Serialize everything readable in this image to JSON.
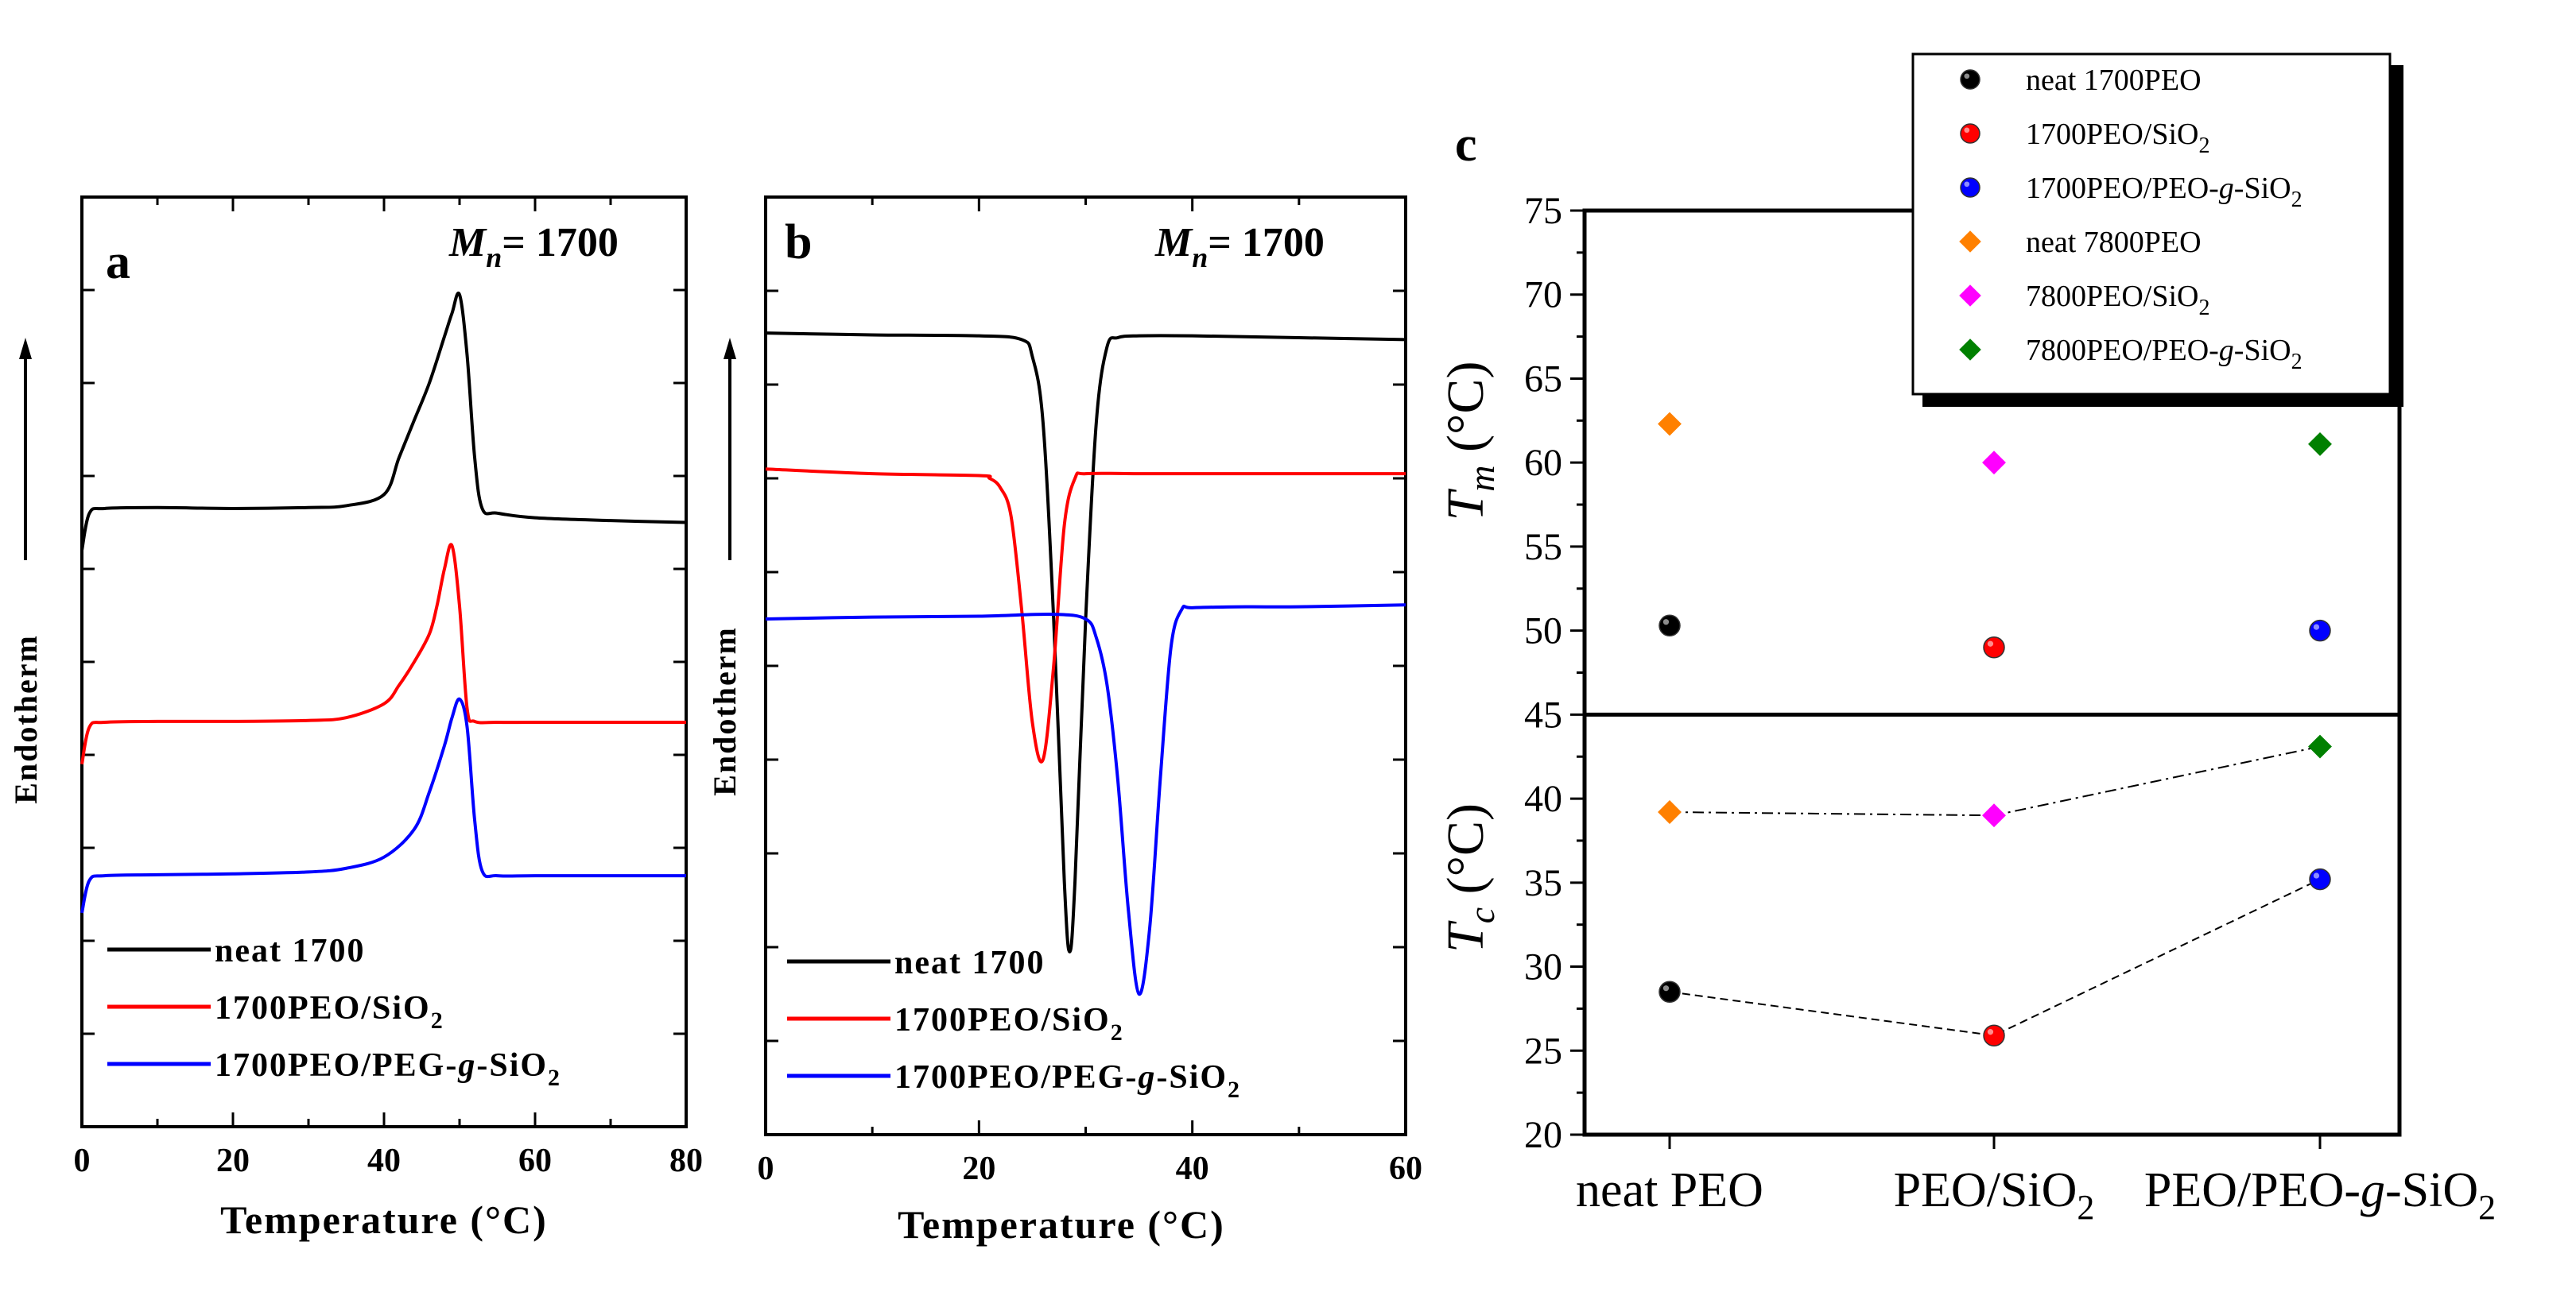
{
  "chart_data": [
    {
      "panel": "a",
      "type": "line",
      "annotation": "= 1700",
      "annotation_prefix": "M",
      "annotation_sub": "n",
      "xlabel": "Temperature (°C)",
      "ylabel": "Endotherm",
      "xlim": [
        0,
        80
      ],
      "xticks": [
        "0",
        "20",
        "40",
        "60",
        "80"
      ],
      "legend_placement": "bottom",
      "series": [
        {
          "name": "neat 1700",
          "name_sub": "",
          "color": "#000000",
          "x": [
            0,
            1,
            3,
            10,
            20,
            30,
            35,
            40,
            42,
            44,
            46,
            48,
            49,
            50,
            51,
            52,
            53,
            55,
            60,
            70,
            80
          ],
          "y": [
            0.62,
            0.66,
            0.665,
            0.666,
            0.665,
            0.666,
            0.668,
            0.68,
            0.72,
            0.76,
            0.8,
            0.85,
            0.875,
            0.895,
            0.83,
            0.72,
            0.665,
            0.66,
            0.655,
            0.652,
            0.65
          ]
        },
        {
          "name": "1700PEO/SiO",
          "name_sub": "2",
          "color": "#ff0000",
          "x": [
            0,
            1,
            3,
            10,
            20,
            30,
            35,
            40,
            42,
            44,
            46,
            47,
            48,
            49,
            50,
            51,
            52,
            55,
            60,
            70,
            80
          ],
          "y": [
            0.39,
            0.43,
            0.435,
            0.436,
            0.436,
            0.437,
            0.44,
            0.455,
            0.475,
            0.5,
            0.53,
            0.56,
            0.6,
            0.625,
            0.56,
            0.45,
            0.436,
            0.435,
            0.435,
            0.435,
            0.435
          ]
        },
        {
          "name": "1700PEO/PEG-g-SiO",
          "name_sub": "2",
          "color": "#0000ff",
          "x": [
            0,
            1,
            3,
            10,
            20,
            30,
            35,
            40,
            44,
            46,
            48,
            49,
            50,
            51,
            52,
            53,
            55,
            60,
            70,
            80
          ],
          "y": [
            0.23,
            0.265,
            0.27,
            0.271,
            0.272,
            0.274,
            0.278,
            0.29,
            0.32,
            0.36,
            0.41,
            0.44,
            0.46,
            0.43,
            0.33,
            0.275,
            0.27,
            0.27,
            0.27,
            0.27
          ]
        }
      ],
      "grid": false
    },
    {
      "panel": "b",
      "type": "line",
      "annotation": "= 1700",
      "annotation_prefix": "M",
      "annotation_sub": "n",
      "xlabel": "Temperature (°C)",
      "ylabel": "Endotherm",
      "xlim": [
        0,
        60
      ],
      "xticks": [
        "0",
        "20",
        "40",
        "60"
      ],
      "legend_placement": "bottom",
      "series": [
        {
          "name": "neat 1700",
          "name_sub": "",
          "color": "#000000",
          "x": [
            0,
            10,
            20,
            24,
            25,
            26,
            27,
            28,
            28.5,
            29,
            30,
            31,
            32,
            33,
            35,
            40,
            50,
            60
          ],
          "y": [
            0.855,
            0.853,
            0.852,
            0.848,
            0.83,
            0.76,
            0.55,
            0.27,
            0.195,
            0.27,
            0.55,
            0.76,
            0.84,
            0.85,
            0.852,
            0.852,
            0.85,
            0.848
          ]
        },
        {
          "name": "1700PEO/SiO",
          "name_sub": "2",
          "color": "#ff0000",
          "x": [
            0,
            10,
            20,
            21,
            22,
            23,
            24,
            25,
            26,
            27,
            28,
            29,
            30,
            35,
            40,
            50,
            60
          ],
          "y": [
            0.71,
            0.705,
            0.703,
            0.7,
            0.69,
            0.66,
            0.56,
            0.44,
            0.4,
            0.5,
            0.65,
            0.7,
            0.705,
            0.705,
            0.705,
            0.705,
            0.705
          ]
        },
        {
          "name": "1700PEO/PEG-g-SiO",
          "name_sub": "2",
          "color": "#0000ff",
          "x": [
            0,
            10,
            20,
            27,
            30,
            31,
            32,
            33,
            34,
            35,
            36,
            37,
            38,
            39,
            40,
            45,
            50,
            60
          ],
          "y": [
            0.55,
            0.552,
            0.553,
            0.555,
            0.55,
            0.53,
            0.48,
            0.38,
            0.24,
            0.15,
            0.22,
            0.38,
            0.52,
            0.56,
            0.562,
            0.563,
            0.563,
            0.565
          ]
        }
      ],
      "grid": false
    },
    {
      "panel": "c",
      "type": "scatter",
      "categories": [
        "neat PEO",
        "PEO/SiO",
        "PEO/PEO-"
      ],
      "category_labels": [
        {
          "main": "neat PEO",
          "italic": "",
          "tail": "",
          "sub": ""
        },
        {
          "main": "PEO/SiO",
          "italic": "",
          "tail": "",
          "sub": "2"
        },
        {
          "main": "PEO/PEO-",
          "italic": "g",
          "tail": "-SiO",
          "sub": "2"
        }
      ],
      "ylim": [
        20,
        75
      ],
      "yticks": [
        "20",
        "25",
        "30",
        "35",
        "40",
        "45",
        "50",
        "55",
        "60",
        "65",
        "70",
        "75"
      ],
      "ylabel_top": {
        "var": "T",
        "sub": "m",
        "unit": " (°C)"
      },
      "ylabel_bottom": {
        "var": "T",
        "sub": "c",
        "unit": " (°C)"
      },
      "divider_y": 45,
      "legend_placement": "top-right",
      "series": [
        {
          "name": "neat 1700PEO",
          "legend": {
            "a": "neat 1700PEO",
            "i": "",
            "b": "",
            "s": ""
          },
          "marker": "circle",
          "color": "#000000",
          "values": [
            {
              "cat": 0,
              "Tm": 50.3,
              "Tc": 28.5
            }
          ]
        },
        {
          "name": "1700PEO/SiO2",
          "legend": {
            "a": "1700PEO/SiO",
            "i": "",
            "b": "",
            "s": "2"
          },
          "marker": "circle",
          "color": "#ff0000",
          "values": [
            {
              "cat": 1,
              "Tm": 49.0,
              "Tc": 25.9
            }
          ]
        },
        {
          "name": "1700PEO/PEO-g-SiO2",
          "legend": {
            "a": "1700PEO/PEO-",
            "i": "g",
            "b": "-SiO",
            "s": "2"
          },
          "marker": "circle",
          "color": "#0000ff",
          "values": [
            {
              "cat": 2,
              "Tm": 50.0,
              "Tc": 35.2
            }
          ]
        },
        {
          "name": "neat 7800PEO",
          "legend": {
            "a": "neat 7800PEO",
            "i": "",
            "b": "",
            "s": ""
          },
          "marker": "diamond",
          "color": "#ff8000",
          "values": [
            {
              "cat": 0,
              "Tm": 62.3,
              "Tc": 39.2
            }
          ]
        },
        {
          "name": "7800PEO/SiO2",
          "legend": {
            "a": "7800PEO/SiO",
            "i": "",
            "b": "",
            "s": "2"
          },
          "marker": "diamond",
          "color": "#ff00ff",
          "values": [
            {
              "cat": 1,
              "Tm": 60.0,
              "Tc": 39.0
            }
          ]
        },
        {
          "name": "7800PEO/PEO-g-SiO2",
          "legend": {
            "a": "7800PEO/PEO-",
            "i": "g",
            "b": "-SiO",
            "s": "2"
          },
          "marker": "diamond",
          "color": "#008000",
          "values": [
            {
              "cat": 2,
              "Tm": 61.1,
              "Tc": 43.1
            }
          ]
        }
      ],
      "dashed_lines": [
        "Tc of 1700PEO series",
        "Tc of 7800PEO series"
      ],
      "grid": false
    }
  ]
}
